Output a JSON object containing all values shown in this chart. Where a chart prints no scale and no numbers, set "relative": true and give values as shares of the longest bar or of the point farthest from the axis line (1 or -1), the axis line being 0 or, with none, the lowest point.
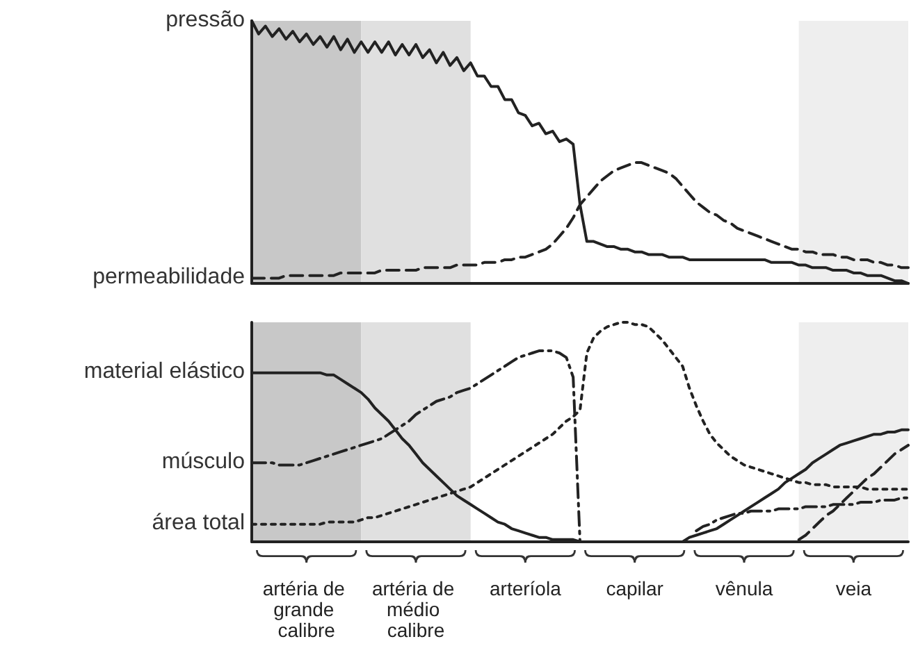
{
  "chart_data": [
    {
      "type": "line",
      "relative": true,
      "tick_labels": false,
      "categories": [
        null,
        null,
        null,
        null,
        null,
        null,
        null,
        null,
        null,
        null,
        null,
        null,
        null,
        null,
        null,
        null,
        null,
        null,
        null,
        null,
        null,
        null,
        null,
        null,
        null,
        null,
        null,
        null,
        null,
        null,
        null,
        null,
        null,
        null,
        null,
        null,
        null,
        null,
        null,
        null,
        null,
        null,
        null,
        null,
        null,
        null,
        null,
        null,
        null,
        null,
        null,
        null,
        null,
        null,
        null,
        null,
        null,
        null,
        null,
        null,
        null,
        null,
        null,
        null,
        null,
        null,
        null,
        null,
        null,
        null,
        null,
        null,
        null,
        null,
        null,
        null,
        null,
        null,
        null,
        null,
        null,
        null,
        null,
        null,
        null,
        null,
        null,
        null,
        null,
        null,
        null,
        null,
        null,
        null,
        null,
        null,
        null
      ],
      "series": [
        {
          "name": "pressão",
          "color": "#222222",
          "line_style": "solid",
          "values": [
            1.0,
            0.95,
            0.98,
            0.94,
            0.97,
            0.93,
            0.96,
            0.92,
            0.95,
            0.91,
            0.94,
            0.9,
            0.94,
            0.89,
            0.93,
            0.88,
            0.92,
            0.88,
            0.92,
            0.88,
            0.92,
            0.87,
            0.91,
            0.87,
            0.91,
            0.86,
            0.89,
            0.84,
            0.88,
            0.83,
            0.86,
            0.81,
            0.84,
            0.79,
            0.79,
            0.75,
            0.75,
            0.7,
            0.7,
            0.65,
            0.64,
            0.6,
            0.61,
            0.57,
            0.58,
            0.54,
            0.55,
            0.53,
            0.3,
            0.16,
            0.16,
            0.15,
            0.14,
            0.14,
            0.13,
            0.13,
            0.12,
            0.12,
            0.11,
            0.11,
            0.11,
            0.1,
            0.1,
            0.1,
            0.09,
            0.09,
            0.09,
            0.09,
            0.09,
            0.09,
            0.09,
            0.09,
            0.09,
            0.09,
            0.09,
            0.09,
            0.08,
            0.08,
            0.08,
            0.08,
            0.07,
            0.07,
            0.06,
            0.06,
            0.06,
            0.05,
            0.05,
            0.05,
            0.04,
            0.04,
            0.03,
            0.03,
            0.03,
            0.02,
            0.01,
            0.01,
            0
          ]
        },
        {
          "name": "permeabilidade",
          "color": "#222222",
          "line_style": "dashed",
          "values": [
            0.02,
            0.02,
            0.02,
            0.02,
            0.02,
            0.03,
            0.03,
            0.03,
            0.03,
            0.03,
            0.03,
            0.03,
            0.03,
            0.04,
            0.04,
            0.04,
            0.04,
            0.04,
            0.04,
            0.05,
            0.05,
            0.05,
            0.05,
            0.05,
            0.05,
            0.06,
            0.06,
            0.06,
            0.06,
            0.06,
            0.07,
            0.07,
            0.07,
            0.07,
            0.08,
            0.08,
            0.08,
            0.09,
            0.09,
            0.1,
            0.1,
            0.11,
            0.12,
            0.13,
            0.15,
            0.18,
            0.21,
            0.25,
            0.3,
            0.33,
            0.36,
            0.39,
            0.41,
            0.43,
            0.44,
            0.45,
            0.46,
            0.46,
            0.45,
            0.44,
            0.43,
            0.42,
            0.4,
            0.37,
            0.34,
            0.31,
            0.29,
            0.27,
            0.26,
            0.24,
            0.23,
            0.21,
            0.2,
            0.19,
            0.18,
            0.17,
            0.16,
            0.15,
            0.14,
            0.13,
            0.13,
            0.12,
            0.12,
            0.11,
            0.11,
            0.11,
            0.1,
            0.1,
            0.09,
            0.09,
            0.09,
            0.08,
            0.08,
            0.07,
            0.07,
            0.06,
            0.06
          ]
        }
      ]
    },
    {
      "type": "line",
      "relative": true,
      "tick_labels": "x",
      "categories": [
        null,
        null,
        null,
        null,
        null,
        null,
        null,
        null,
        "artéria de grande calibre",
        null,
        null,
        null,
        null,
        null,
        null,
        null,
        null,
        null,
        null,
        null,
        null,
        null,
        null,
        null,
        "artéria de médio calibre",
        null,
        null,
        null,
        null,
        null,
        null,
        null,
        null,
        null,
        null,
        null,
        null,
        null,
        null,
        null,
        "arteríola",
        null,
        null,
        null,
        null,
        null,
        null,
        null,
        null,
        null,
        null,
        null,
        null,
        null,
        null,
        null,
        "capilar",
        null,
        null,
        null,
        null,
        null,
        null,
        null,
        null,
        null,
        null,
        null,
        null,
        null,
        null,
        null,
        "vênula",
        null,
        null,
        null,
        null,
        null,
        null,
        null,
        null,
        null,
        null,
        null,
        null,
        null,
        null,
        null,
        "veia",
        null,
        null,
        null,
        null,
        null,
        null,
        null,
        null
      ],
      "series": [
        {
          "name": "material elástico",
          "color": "#222222",
          "line_style": "solid",
          "values": [
            0.77,
            0.77,
            0.77,
            0.77,
            0.77,
            0.77,
            0.77,
            0.77,
            0.77,
            0.77,
            0.77,
            0.76,
            0.76,
            0.74,
            0.72,
            0.7,
            0.68,
            0.65,
            0.61,
            0.58,
            0.55,
            0.51,
            0.47,
            0.44,
            0.4,
            0.36,
            0.33,
            0.3,
            0.27,
            0.24,
            0.21,
            0.19,
            0.17,
            0.15,
            0.13,
            0.11,
            0.09,
            0.08,
            0.06,
            0.05,
            0.04,
            0.03,
            0.02,
            0.02,
            0.01,
            0.01,
            0.01,
            0.01,
            0,
            0,
            0,
            0,
            0,
            0,
            0,
            0,
            0,
            0,
            0,
            0,
            0,
            0,
            0,
            0,
            0.02,
            0.03,
            0.04,
            0.05,
            0.06,
            0.08,
            0.1,
            0.12,
            0.14,
            0.16,
            0.18,
            0.2,
            0.22,
            0.24,
            0.27,
            0.29,
            0.31,
            0.33,
            0.36,
            0.38,
            0.4,
            0.42,
            0.44,
            0.45,
            0.46,
            0.47,
            0.48,
            0.49,
            0.49,
            0.5,
            0.5,
            0.51,
            0.51
          ]
        },
        {
          "name": "músculo",
          "color": "#222222",
          "line_style": "dashdot",
          "values": [
            0.36,
            0.36,
            0.36,
            0.36,
            0.35,
            0.35,
            0.35,
            0.35,
            0.36,
            0.37,
            0.38,
            0.39,
            0.4,
            0.41,
            0.42,
            0.43,
            0.44,
            0.45,
            0.46,
            0.47,
            0.49,
            0.51,
            0.53,
            0.55,
            0.58,
            0.6,
            0.62,
            0.64,
            0.65,
            0.66,
            0.68,
            0.69,
            0.7,
            0.72,
            0.74,
            0.76,
            0.78,
            0.8,
            0.82,
            0.84,
            0.85,
            0.86,
            0.87,
            0.87,
            0.87,
            0.86,
            0.84,
            0.75,
            0,
            null,
            null,
            null,
            null,
            null,
            null,
            null,
            null,
            null,
            null,
            null,
            null,
            null,
            null,
            null,
            null,
            0.05,
            0.07,
            0.08,
            0.1,
            0.11,
            0.12,
            0.13,
            0.13,
            0.14,
            0.14,
            0.14,
            0.14,
            0.15,
            0.15,
            0.15,
            0.15,
            0.16,
            0.16,
            0.16,
            0.16,
            0.17,
            0.17,
            0.17,
            0.17,
            0.18,
            0.18,
            0.18,
            0.19,
            0.19,
            0.19,
            0.2,
            0.2
          ]
        },
        {
          "name": "área total",
          "color": "#222222",
          "line_style": "dotted",
          "values": [
            0.08,
            0.08,
            0.08,
            0.08,
            0.08,
            0.08,
            0.08,
            0.08,
            0.08,
            0.08,
            0.08,
            0.09,
            0.09,
            0.09,
            0.09,
            0.09,
            0.1,
            0.11,
            0.11,
            0.12,
            0.13,
            0.14,
            0.15,
            0.16,
            0.17,
            0.18,
            0.19,
            0.2,
            0.21,
            0.22,
            0.23,
            0.24,
            0.25,
            0.27,
            0.29,
            0.31,
            0.33,
            0.35,
            0.37,
            0.39,
            0.41,
            0.43,
            0.45,
            0.47,
            0.49,
            0.52,
            0.55,
            0.57,
            0.6,
            0.86,
            0.93,
            0.96,
            0.98,
            0.99,
            1.0,
            1.0,
            0.99,
            0.99,
            0.98,
            0.95,
            0.92,
            0.88,
            0.84,
            0.8,
            0.7,
            0.62,
            0.55,
            0.49,
            0.45,
            0.42,
            0.39,
            0.37,
            0.35,
            0.34,
            0.33,
            0.32,
            0.31,
            0.3,
            0.29,
            0.28,
            0.27,
            0.27,
            0.26,
            0.26,
            0.26,
            0.25,
            0.25,
            0.25,
            0.25,
            0.25,
            0.24,
            0.24,
            0.24,
            0.24,
            0.24,
            0.24,
            0.24
          ]
        },
        {
          "color": "#222222",
          "line_style": "dashed",
          "values": [
            null,
            null,
            null,
            null,
            null,
            null,
            null,
            null,
            null,
            null,
            null,
            null,
            null,
            null,
            null,
            null,
            null,
            null,
            null,
            null,
            null,
            null,
            null,
            null,
            null,
            null,
            null,
            null,
            null,
            null,
            null,
            null,
            null,
            null,
            null,
            null,
            null,
            null,
            null,
            null,
            null,
            null,
            null,
            null,
            null,
            null,
            null,
            null,
            null,
            null,
            null,
            null,
            null,
            null,
            null,
            null,
            null,
            null,
            null,
            null,
            null,
            null,
            null,
            null,
            null,
            null,
            null,
            null,
            null,
            null,
            null,
            null,
            null,
            null,
            null,
            null,
            null,
            null,
            null,
            null,
            0.01,
            0.03,
            0.06,
            0.09,
            0.12,
            0.14,
            0.17,
            0.2,
            0.23,
            0.26,
            0.29,
            0.31,
            0.34,
            0.37,
            0.4,
            0.42,
            0.44
          ]
        }
      ]
    }
  ]
}
